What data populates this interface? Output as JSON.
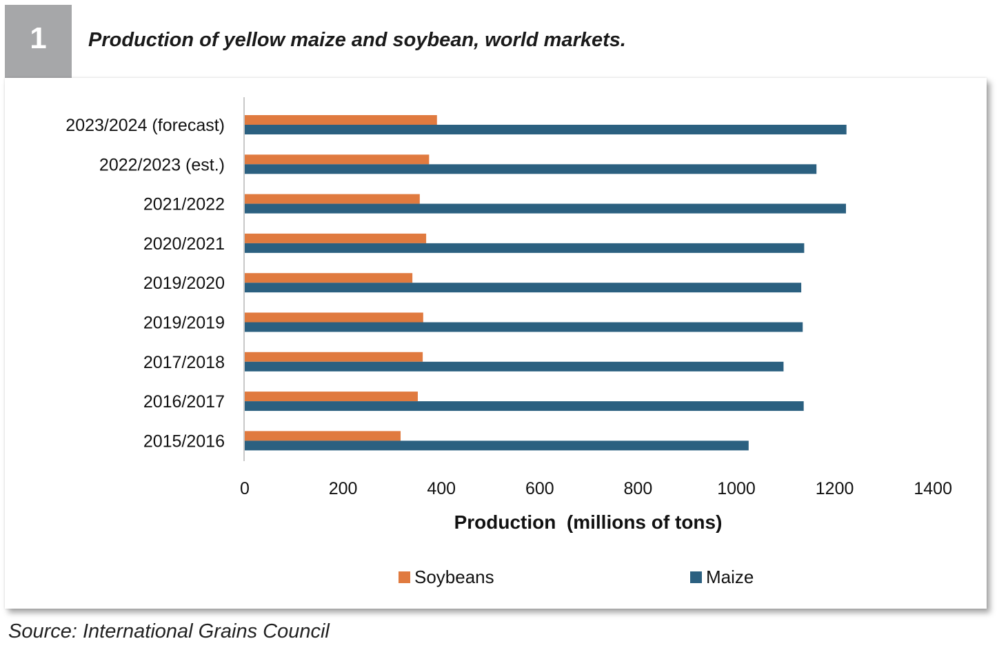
{
  "figure": {
    "number": "1",
    "title": "Production of yellow maize and soybean, world markets.",
    "source": "Source: International Grains Council"
  },
  "colors": {
    "soybeans": "#e07a3f",
    "maize": "#2b6080",
    "number_box": "#a6a7a9",
    "axis": "#c8c8c8"
  },
  "chart_data": {
    "type": "bar",
    "orientation": "horizontal",
    "categories": [
      "2023/2024 (forecast)",
      "2022/2023 (est.)",
      "2021/2022",
      "2020/2021",
      "2019/2020",
      "2019/2019",
      "2017/2018",
      "2016/2017",
      "2015/2016"
    ],
    "series": [
      {
        "name": "Soybeans",
        "values": [
          391,
          375,
          356,
          369,
          341,
          363,
          362,
          352,
          317
        ]
      },
      {
        "name": "Maize",
        "values": [
          1224,
          1163,
          1223,
          1138,
          1132,
          1135,
          1096,
          1137,
          1025
        ]
      }
    ],
    "xlabel": "Production  (millions of tons)",
    "ylabel": "",
    "xlim": [
      0,
      1400
    ],
    "xticks": [
      "0",
      "200",
      "400",
      "600",
      "800",
      "1000",
      "1200",
      "1400"
    ],
    "grid": false,
    "legend": [
      "Soybeans",
      "Maize"
    ],
    "legend_position": "bottom"
  }
}
